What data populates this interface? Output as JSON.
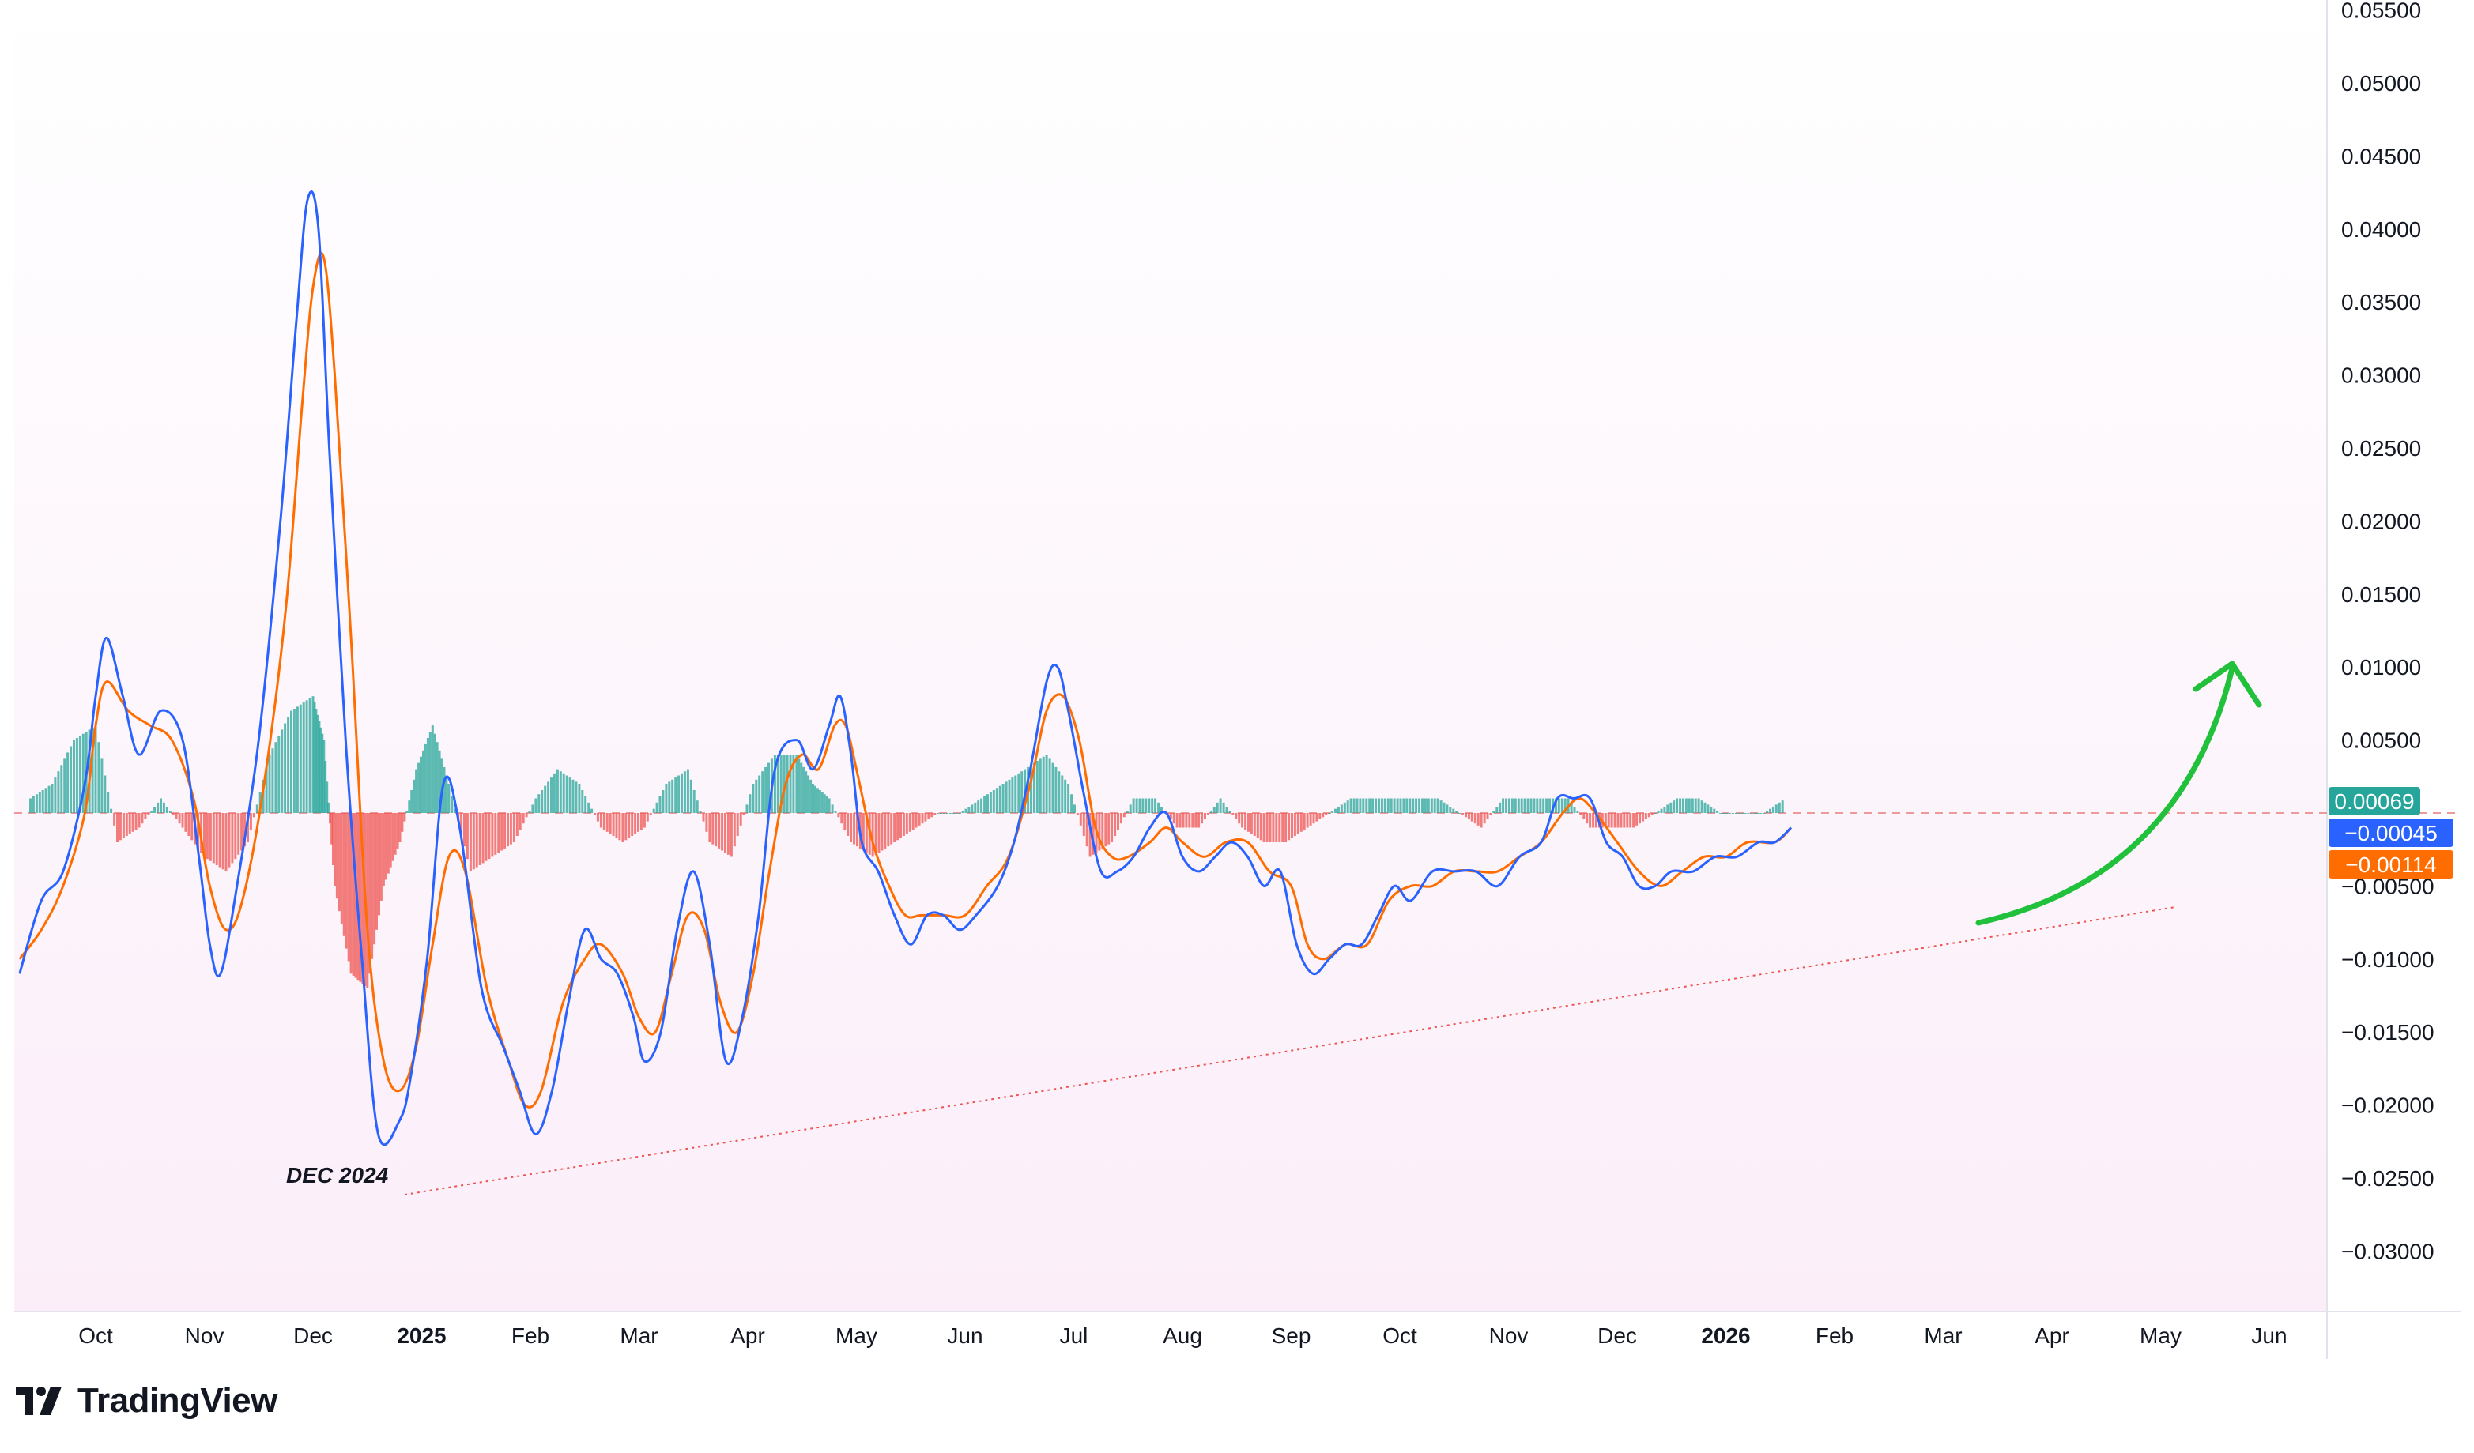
{
  "brand": {
    "name": "TradingView"
  },
  "annotations": {
    "dec_label": "DEC 2024"
  },
  "colors": {
    "macd_line": "#2962ff",
    "signal_line": "#ff6d00",
    "hist_pos": "#26a69a",
    "hist_neg": "#ef5350",
    "arrow": "#22c13c",
    "trendline": "#ef5350",
    "zero_line": "#ef9a9a"
  },
  "price_labels": {
    "histogram": "0.00069",
    "macd": "−0.00045",
    "signal": "−0.00114"
  },
  "chart_data": {
    "type": "line",
    "title": "",
    "xlabel": "",
    "ylabel": "",
    "ylim": [
      -0.034,
      0.0555
    ],
    "x_ticks": [
      "Oct",
      "Nov",
      "Dec",
      "2025",
      "Feb",
      "Mar",
      "Apr",
      "May",
      "Jun",
      "Jul",
      "Aug",
      "Sep",
      "Oct",
      "Nov",
      "Dec",
      "2026",
      "Feb",
      "Mar",
      "Apr",
      "May",
      "Jun"
    ],
    "x_ticks_bold": [
      "2025",
      "2026"
    ],
    "y_ticks": [
      "0.05500",
      "0.05000",
      "0.04500",
      "0.04000",
      "0.03500",
      "0.03000",
      "0.02500",
      "0.02000",
      "0.01500",
      "0.01000",
      "0.00500",
      "−0.00500",
      "−0.01000",
      "−0.01500",
      "−0.02000",
      "−0.02500",
      "−0.03000"
    ],
    "y_tick_values": [
      0.055,
      0.05,
      0.045,
      0.04,
      0.035,
      0.03,
      0.025,
      0.02,
      0.015,
      0.01,
      0.005,
      -0.005,
      -0.01,
      -0.015,
      -0.02,
      -0.025,
      -0.03
    ],
    "x_units": "months since Oct 2024 label",
    "series": [
      {
        "role": "macd",
        "points": [
          [
            -0.7,
            -0.011
          ],
          [
            -0.5,
            -0.006
          ],
          [
            -0.3,
            -0.004
          ],
          [
            -0.1,
            0.002
          ],
          [
            0.0,
            0.008
          ],
          [
            0.1,
            0.012
          ],
          [
            0.25,
            0.008
          ],
          [
            0.4,
            0.004
          ],
          [
            0.6,
            0.007
          ],
          [
            0.8,
            0.005
          ],
          [
            0.95,
            -0.003
          ],
          [
            1.05,
            -0.009
          ],
          [
            1.15,
            -0.011
          ],
          [
            1.3,
            -0.005
          ],
          [
            1.5,
            0.005
          ],
          [
            1.7,
            0.02
          ],
          [
            1.85,
            0.034
          ],
          [
            1.95,
            0.042
          ],
          [
            2.05,
            0.04
          ],
          [
            2.15,
            0.025
          ],
          [
            2.3,
            0.005
          ],
          [
            2.45,
            -0.01
          ],
          [
            2.6,
            -0.022
          ],
          [
            2.8,
            -0.021
          ],
          [
            2.9,
            -0.018
          ],
          [
            3.05,
            -0.01
          ],
          [
            3.2,
            0.002
          ],
          [
            3.35,
            -0.001
          ],
          [
            3.55,
            -0.012
          ],
          [
            3.75,
            -0.016
          ],
          [
            3.9,
            -0.019
          ],
          [
            4.05,
            -0.022
          ],
          [
            4.2,
            -0.019
          ],
          [
            4.35,
            -0.013
          ],
          [
            4.5,
            -0.008
          ],
          [
            4.65,
            -0.01
          ],
          [
            4.8,
            -0.011
          ],
          [
            4.95,
            -0.014
          ],
          [
            5.05,
            -0.017
          ],
          [
            5.2,
            -0.015
          ],
          [
            5.35,
            -0.008
          ],
          [
            5.5,
            -0.004
          ],
          [
            5.65,
            -0.009
          ],
          [
            5.8,
            -0.017
          ],
          [
            5.95,
            -0.014
          ],
          [
            6.1,
            -0.007
          ],
          [
            6.25,
            0.003
          ],
          [
            6.45,
            0.005
          ],
          [
            6.6,
            0.003
          ],
          [
            6.75,
            0.006
          ],
          [
            6.85,
            0.008
          ],
          [
            6.95,
            0.004
          ],
          [
            7.05,
            -0.002
          ],
          [
            7.2,
            -0.004
          ],
          [
            7.35,
            -0.007
          ],
          [
            7.5,
            -0.009
          ],
          [
            7.65,
            -0.007
          ],
          [
            7.8,
            -0.007
          ],
          [
            7.95,
            -0.008
          ],
          [
            8.1,
            -0.007
          ],
          [
            8.3,
            -0.005
          ],
          [
            8.45,
            -0.002
          ],
          [
            8.6,
            0.003
          ],
          [
            8.75,
            0.009
          ],
          [
            8.85,
            0.01
          ],
          [
            8.95,
            0.007
          ],
          [
            9.1,
            0.001
          ],
          [
            9.25,
            -0.004
          ],
          [
            9.4,
            -0.004
          ],
          [
            9.55,
            -0.003
          ],
          [
            9.7,
            -0.001
          ],
          [
            9.85,
            0.0
          ],
          [
            10.0,
            -0.003
          ],
          [
            10.15,
            -0.004
          ],
          [
            10.3,
            -0.003
          ],
          [
            10.45,
            -0.002
          ],
          [
            10.6,
            -0.003
          ],
          [
            10.75,
            -0.005
          ],
          [
            10.9,
            -0.004
          ],
          [
            11.05,
            -0.009
          ],
          [
            11.2,
            -0.011
          ],
          [
            11.35,
            -0.01
          ],
          [
            11.5,
            -0.009
          ],
          [
            11.65,
            -0.009
          ],
          [
            11.8,
            -0.007
          ],
          [
            11.95,
            -0.005
          ],
          [
            12.1,
            -0.006
          ],
          [
            12.3,
            -0.004
          ],
          [
            12.5,
            -0.004
          ],
          [
            12.7,
            -0.004
          ],
          [
            12.9,
            -0.005
          ],
          [
            13.1,
            -0.003
          ],
          [
            13.3,
            -0.002
          ],
          [
            13.45,
            0.001
          ],
          [
            13.6,
            0.001
          ],
          [
            13.75,
            0.001
          ],
          [
            13.9,
            -0.002
          ],
          [
            14.05,
            -0.003
          ],
          [
            14.2,
            -0.005
          ],
          [
            14.35,
            -0.005
          ],
          [
            14.5,
            -0.004
          ],
          [
            14.7,
            -0.004
          ],
          [
            14.9,
            -0.003
          ],
          [
            15.1,
            -0.003
          ],
          [
            15.3,
            -0.002
          ],
          [
            15.45,
            -0.002
          ],
          [
            15.6,
            -0.001
          ]
        ]
      },
      {
        "role": "signal",
        "points": [
          [
            -0.7,
            -0.01
          ],
          [
            -0.5,
            -0.008
          ],
          [
            -0.3,
            -0.005
          ],
          [
            -0.1,
            0.0
          ],
          [
            0.0,
            0.006
          ],
          [
            0.1,
            0.009
          ],
          [
            0.3,
            0.007
          ],
          [
            0.5,
            0.006
          ],
          [
            0.7,
            0.005
          ],
          [
            0.9,
            0.001
          ],
          [
            1.05,
            -0.005
          ],
          [
            1.2,
            -0.008
          ],
          [
            1.35,
            -0.006
          ],
          [
            1.55,
            0.002
          ],
          [
            1.75,
            0.014
          ],
          [
            1.9,
            0.028
          ],
          [
            2.0,
            0.036
          ],
          [
            2.1,
            0.038
          ],
          [
            2.2,
            0.03
          ],
          [
            2.35,
            0.012
          ],
          [
            2.5,
            -0.008
          ],
          [
            2.65,
            -0.017
          ],
          [
            2.8,
            -0.019
          ],
          [
            2.95,
            -0.016
          ],
          [
            3.1,
            -0.009
          ],
          [
            3.25,
            -0.003
          ],
          [
            3.4,
            -0.004
          ],
          [
            3.6,
            -0.012
          ],
          [
            3.8,
            -0.017
          ],
          [
            3.95,
            -0.02
          ],
          [
            4.1,
            -0.019
          ],
          [
            4.3,
            -0.013
          ],
          [
            4.5,
            -0.01
          ],
          [
            4.65,
            -0.009
          ],
          [
            4.85,
            -0.011
          ],
          [
            5.0,
            -0.014
          ],
          [
            5.15,
            -0.015
          ],
          [
            5.3,
            -0.011
          ],
          [
            5.45,
            -0.007
          ],
          [
            5.6,
            -0.008
          ],
          [
            5.75,
            -0.013
          ],
          [
            5.9,
            -0.015
          ],
          [
            6.05,
            -0.011
          ],
          [
            6.2,
            -0.004
          ],
          [
            6.35,
            0.002
          ],
          [
            6.5,
            0.004
          ],
          [
            6.65,
            0.003
          ],
          [
            6.8,
            0.006
          ],
          [
            6.9,
            0.006
          ],
          [
            7.0,
            0.003
          ],
          [
            7.15,
            -0.002
          ],
          [
            7.3,
            -0.005
          ],
          [
            7.45,
            -0.007
          ],
          [
            7.6,
            -0.007
          ],
          [
            7.8,
            -0.007
          ],
          [
            8.0,
            -0.007
          ],
          [
            8.2,
            -0.005
          ],
          [
            8.4,
            -0.003
          ],
          [
            8.6,
            0.002
          ],
          [
            8.75,
            0.007
          ],
          [
            8.9,
            0.008
          ],
          [
            9.05,
            0.005
          ],
          [
            9.2,
            -0.001
          ],
          [
            9.35,
            -0.003
          ],
          [
            9.5,
            -0.003
          ],
          [
            9.7,
            -0.002
          ],
          [
            9.85,
            -0.001
          ],
          [
            10.0,
            -0.002
          ],
          [
            10.2,
            -0.003
          ],
          [
            10.4,
            -0.002
          ],
          [
            10.6,
            -0.002
          ],
          [
            10.8,
            -0.004
          ],
          [
            11.0,
            -0.005
          ],
          [
            11.15,
            -0.009
          ],
          [
            11.3,
            -0.01
          ],
          [
            11.5,
            -0.009
          ],
          [
            11.7,
            -0.009
          ],
          [
            11.9,
            -0.006
          ],
          [
            12.1,
            -0.005
          ],
          [
            12.3,
            -0.005
          ],
          [
            12.5,
            -0.004
          ],
          [
            12.7,
            -0.004
          ],
          [
            12.9,
            -0.004
          ],
          [
            13.1,
            -0.003
          ],
          [
            13.3,
            -0.002
          ],
          [
            13.5,
            0.0
          ],
          [
            13.65,
            0.001
          ],
          [
            13.8,
            0.0
          ],
          [
            14.0,
            -0.002
          ],
          [
            14.2,
            -0.004
          ],
          [
            14.4,
            -0.005
          ],
          [
            14.6,
            -0.004
          ],
          [
            14.8,
            -0.003
          ],
          [
            15.0,
            -0.003
          ],
          [
            15.2,
            -0.002
          ],
          [
            15.45,
            -0.002
          ],
          [
            15.6,
            -0.001
          ]
        ]
      }
    ],
    "histogram": [
      [
        -0.6,
        0.001
      ],
      [
        -0.4,
        0.002
      ],
      [
        -0.2,
        0.005
      ],
      [
        0.0,
        0.006
      ],
      [
        0.2,
        -0.002
      ],
      [
        0.4,
        -0.001
      ],
      [
        0.6,
        0.001
      ],
      [
        0.8,
        -0.001
      ],
      [
        1.0,
        -0.003
      ],
      [
        1.2,
        -0.004
      ],
      [
        1.4,
        -0.002
      ],
      [
        1.6,
        0.004
      ],
      [
        1.8,
        0.007
      ],
      [
        2.0,
        0.008
      ],
      [
        2.1,
        0.005
      ],
      [
        2.2,
        -0.005
      ],
      [
        2.35,
        -0.011
      ],
      [
        2.5,
        -0.012
      ],
      [
        2.65,
        -0.005
      ],
      [
        2.8,
        -0.002
      ],
      [
        2.95,
        0.003
      ],
      [
        3.1,
        0.006
      ],
      [
        3.25,
        0.002
      ],
      [
        3.45,
        -0.004
      ],
      [
        3.65,
        -0.003
      ],
      [
        3.85,
        -0.002
      ],
      [
        4.05,
        0.001
      ],
      [
        4.25,
        0.003
      ],
      [
        4.45,
        0.002
      ],
      [
        4.65,
        -0.001
      ],
      [
        4.85,
        -0.002
      ],
      [
        5.05,
        -0.001
      ],
      [
        5.25,
        0.002
      ],
      [
        5.45,
        0.003
      ],
      [
        5.65,
        -0.002
      ],
      [
        5.85,
        -0.003
      ],
      [
        6.05,
        0.002
      ],
      [
        6.25,
        0.004
      ],
      [
        6.45,
        0.004
      ],
      [
        6.6,
        0.002
      ],
      [
        6.75,
        0.001
      ],
      [
        6.95,
        -0.002
      ],
      [
        7.15,
        -0.003
      ],
      [
        7.35,
        -0.002
      ],
      [
        7.55,
        -0.001
      ],
      [
        7.75,
        0.0
      ],
      [
        7.95,
        0.0
      ],
      [
        8.15,
        0.001
      ],
      [
        8.35,
        0.002
      ],
      [
        8.55,
        0.003
      ],
      [
        8.75,
        0.004
      ],
      [
        8.95,
        0.002
      ],
      [
        9.15,
        -0.003
      ],
      [
        9.35,
        -0.002
      ],
      [
        9.55,
        0.001
      ],
      [
        9.75,
        0.001
      ],
      [
        9.95,
        -0.001
      ],
      [
        10.15,
        -0.001
      ],
      [
        10.35,
        0.001
      ],
      [
        10.55,
        -0.001
      ],
      [
        10.75,
        -0.002
      ],
      [
        10.95,
        -0.002
      ],
      [
        11.15,
        -0.001
      ],
      [
        11.35,
        0.0
      ],
      [
        11.55,
        0.001
      ],
      [
        11.75,
        0.001
      ],
      [
        11.95,
        0.001
      ],
      [
        12.15,
        0.001
      ],
      [
        12.35,
        0.001
      ],
      [
        12.55,
        0.0
      ],
      [
        12.75,
        -0.001
      ],
      [
        12.95,
        0.001
      ],
      [
        13.15,
        0.001
      ],
      [
        13.35,
        0.001
      ],
      [
        13.55,
        0.001
      ],
      [
        13.75,
        -0.001
      ],
      [
        13.95,
        -0.001
      ],
      [
        14.15,
        -0.001
      ],
      [
        14.35,
        0.0
      ],
      [
        14.55,
        0.001
      ],
      [
        14.75,
        0.001
      ],
      [
        14.95,
        0.0
      ],
      [
        15.15,
        0.0
      ],
      [
        15.35,
        0.0
      ],
      [
        15.55,
        0.001
      ]
    ]
  }
}
